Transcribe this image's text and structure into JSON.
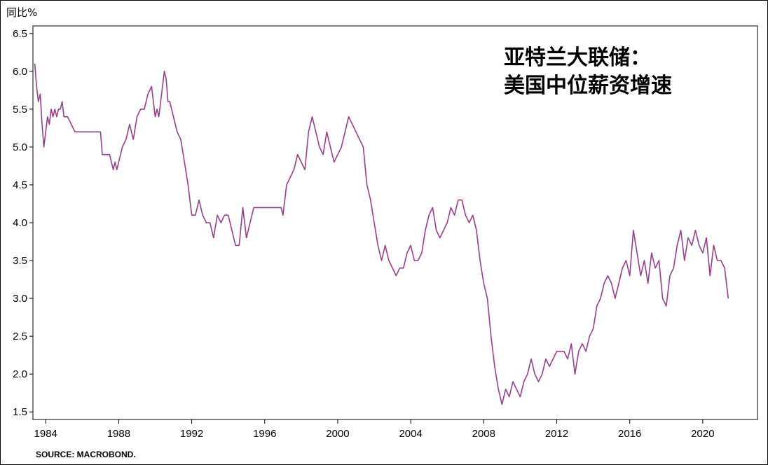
{
  "chart_data": {
    "type": "line",
    "title_lines": [
      "亚特兰大联储：",
      "美国中位薪资增速"
    ],
    "y_unit_label": "同比%",
    "source": "SOURCE: MACROBOND.",
    "xlim": [
      1983.3,
      2023.0
    ],
    "ylim": [
      1.4,
      6.6
    ],
    "x_ticks": [
      1984,
      1988,
      1992,
      1996,
      2000,
      2004,
      2008,
      2012,
      2016,
      2020
    ],
    "y_ticks": [
      1.5,
      2.0,
      2.5,
      3.0,
      3.5,
      4.0,
      4.5,
      5.0,
      5.5,
      6.0,
      6.5
    ],
    "grid": false,
    "line_color": "#9b3d8a",
    "series": [
      {
        "x": [
          1983.4,
          1983.5,
          1983.6,
          1983.7,
          1983.8,
          1983.9,
          1984.0,
          1984.1,
          1984.2,
          1984.3,
          1984.4,
          1984.5,
          1984.6,
          1984.7,
          1984.8,
          1984.9,
          1985.0,
          1985.2,
          1985.4,
          1985.6,
          1985.8,
          1986.0,
          1986.5,
          1987.0,
          1987.1,
          1987.3,
          1987.5,
          1987.7,
          1987.8,
          1987.9,
          1988.0,
          1988.2,
          1988.4,
          1988.6,
          1988.8,
          1989.0,
          1989.2,
          1989.4,
          1989.6,
          1989.8,
          1990.0,
          1990.1,
          1990.2,
          1990.3,
          1990.4,
          1990.5,
          1990.6,
          1990.7,
          1990.8,
          1991.0,
          1991.2,
          1991.4,
          1991.6,
          1991.8,
          1992.0,
          1992.2,
          1992.4,
          1992.6,
          1992.8,
          1993.0,
          1993.2,
          1993.4,
          1993.6,
          1993.8,
          1994.0,
          1994.2,
          1994.4,
          1994.6,
          1994.8,
          1995.0,
          1995.2,
          1995.4,
          1995.6,
          1995.8,
          1996.0,
          1996.5,
          1996.9,
          1997.0,
          1997.2,
          1997.4,
          1997.6,
          1997.8,
          1998.0,
          1998.2,
          1998.4,
          1998.6,
          1998.8,
          1999.0,
          1999.2,
          1999.4,
          1999.6,
          1999.8,
          2000.0,
          2000.2,
          2000.4,
          2000.6,
          2000.8,
          2001.0,
          2001.2,
          2001.4,
          2001.6,
          2001.8,
          2002.0,
          2002.2,
          2002.4,
          2002.6,
          2002.8,
          2003.0,
          2003.2,
          2003.4,
          2003.6,
          2003.8,
          2004.0,
          2004.2,
          2004.4,
          2004.6,
          2004.8,
          2005.0,
          2005.2,
          2005.4,
          2005.6,
          2005.8,
          2006.0,
          2006.2,
          2006.4,
          2006.6,
          2006.8,
          2007.0,
          2007.2,
          2007.4,
          2007.6,
          2007.8,
          2008.0,
          2008.2,
          2008.4,
          2008.6,
          2008.8,
          2009.0,
          2009.2,
          2009.4,
          2009.6,
          2009.8,
          2010.0,
          2010.1,
          2010.2,
          2010.4,
          2010.6,
          2010.8,
          2011.0,
          2011.2,
          2011.4,
          2011.6,
          2011.8,
          2012.0,
          2012.2,
          2012.4,
          2012.6,
          2012.8,
          2013.0,
          2013.2,
          2013.4,
          2013.6,
          2013.8,
          2014.0,
          2014.2,
          2014.4,
          2014.6,
          2014.8,
          2015.0,
          2015.2,
          2015.4,
          2015.6,
          2015.8,
          2016.0,
          2016.2,
          2016.4,
          2016.6,
          2016.8,
          2017.0,
          2017.2,
          2017.4,
          2017.6,
          2017.8,
          2018.0,
          2018.2,
          2018.4,
          2018.6,
          2018.8,
          2019.0,
          2019.2,
          2019.4,
          2019.6,
          2019.8,
          2020.0,
          2020.2,
          2020.4,
          2020.6,
          2020.8,
          2021.0,
          2021.2,
          2021.4
        ],
        "y": [
          6.1,
          5.8,
          5.6,
          5.7,
          5.3,
          5.0,
          5.2,
          5.4,
          5.3,
          5.5,
          5.4,
          5.5,
          5.4,
          5.5,
          5.5,
          5.6,
          5.4,
          5.4,
          5.3,
          5.2,
          5.2,
          5.2,
          5.2,
          5.2,
          4.9,
          4.9,
          4.9,
          4.7,
          4.8,
          4.7,
          4.8,
          5.0,
          5.1,
          5.3,
          5.1,
          5.4,
          5.5,
          5.5,
          5.7,
          5.8,
          5.4,
          5.5,
          5.4,
          5.6,
          5.8,
          6.0,
          5.9,
          5.6,
          5.6,
          5.4,
          5.2,
          5.1,
          4.8,
          4.5,
          4.1,
          4.1,
          4.3,
          4.1,
          4.0,
          4.0,
          3.8,
          4.1,
          4.0,
          4.1,
          4.1,
          3.9,
          3.7,
          3.7,
          4.2,
          3.8,
          4.0,
          4.2,
          4.2,
          4.2,
          4.2,
          4.2,
          4.2,
          4.1,
          4.5,
          4.6,
          4.7,
          4.9,
          4.8,
          4.7,
          5.2,
          5.4,
          5.2,
          5.0,
          4.9,
          5.2,
          5.0,
          4.8,
          4.9,
          5.0,
          5.2,
          5.4,
          5.3,
          5.2,
          5.1,
          5.0,
          4.5,
          4.3,
          4.0,
          3.7,
          3.5,
          3.7,
          3.5,
          3.4,
          3.3,
          3.4,
          3.4,
          3.6,
          3.7,
          3.5,
          3.5,
          3.6,
          3.9,
          4.1,
          4.2,
          3.9,
          3.8,
          3.9,
          4.0,
          4.2,
          4.1,
          4.3,
          4.3,
          4.1,
          4.0,
          4.1,
          3.9,
          3.5,
          3.2,
          3.0,
          2.5,
          2.1,
          1.8,
          1.6,
          1.8,
          1.7,
          1.9,
          1.8,
          1.7,
          1.8,
          1.9,
          2.0,
          2.2,
          2.0,
          1.9,
          2.0,
          2.2,
          2.1,
          2.2,
          2.3,
          2.3,
          2.3,
          2.2,
          2.4,
          2.0,
          2.3,
          2.4,
          2.3,
          2.5,
          2.6,
          2.9,
          3.0,
          3.2,
          3.3,
          3.2,
          3.0,
          3.2,
          3.4,
          3.5,
          3.3,
          3.9,
          3.6,
          3.3,
          3.5,
          3.2,
          3.6,
          3.4,
          3.5,
          3.0,
          2.9,
          3.3,
          3.4,
          3.7,
          3.9,
          3.5,
          3.8,
          3.7,
          3.9,
          3.7,
          3.6,
          3.8,
          3.3,
          3.7,
          3.5,
          3.5,
          3.4,
          3.0
        ]
      }
    ]
  }
}
